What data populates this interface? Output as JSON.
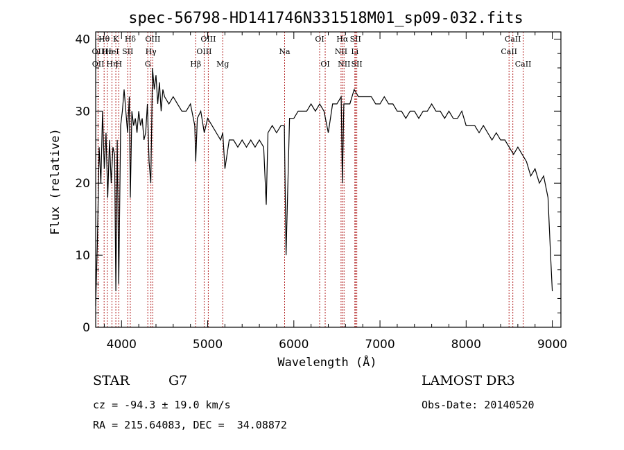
{
  "chart_data": {
    "type": "line",
    "title": "spec-56798-HD141746N331518M01_sp09-032.fits",
    "xlabel": "Wavelength (Å)",
    "ylabel": "Flux (relative)",
    "xlim": [
      3700,
      9100
    ],
    "ylim": [
      0,
      41
    ],
    "xticks": [
      4000,
      5000,
      6000,
      7000,
      8000,
      9000
    ],
    "yticks": [
      0,
      10,
      20,
      30,
      40
    ],
    "grid": false,
    "series": [
      {
        "x": [
          3700,
          3720,
          3740,
          3760,
          3780,
          3800,
          3820,
          3840,
          3860,
          3880,
          3900,
          3920,
          3934,
          3950,
          3968,
          3990,
          4010,
          4030,
          4050,
          4070,
          4090,
          4102,
          4120,
          4140,
          4160,
          4180,
          4200,
          4220,
          4240,
          4260,
          4280,
          4300,
          4320,
          4340,
          4360,
          4380,
          4400,
          4420,
          4440,
          4460,
          4480,
          4500,
          4550,
          4600,
          4650,
          4700,
          4750,
          4800,
          4850,
          4861,
          4880,
          4920,
          4960,
          5000,
          5050,
          5100,
          5150,
          5175,
          5200,
          5250,
          5300,
          5350,
          5400,
          5450,
          5500,
          5550,
          5600,
          5650,
          5680,
          5700,
          5750,
          5800,
          5850,
          5890,
          5910,
          5950,
          6000,
          6050,
          6100,
          6150,
          6200,
          6250,
          6300,
          6350,
          6400,
          6450,
          6500,
          6550,
          6563,
          6580,
          6600,
          6650,
          6700,
          6750,
          6800,
          6850,
          6900,
          6950,
          7000,
          7050,
          7100,
          7150,
          7200,
          7250,
          7300,
          7350,
          7400,
          7450,
          7500,
          7550,
          7600,
          7650,
          7700,
          7750,
          7800,
          7850,
          7900,
          7950,
          8000,
          8050,
          8100,
          8150,
          8200,
          8250,
          8300,
          8350,
          8400,
          8450,
          8500,
          8550,
          8600,
          8650,
          8700,
          8750,
          8800,
          8850,
          8900,
          8950,
          8980,
          9000
        ],
        "y": [
          3,
          12,
          25,
          20,
          30,
          22,
          27,
          18,
          26,
          20,
          25,
          24,
          5,
          26,
          6,
          28,
          30,
          33,
          30,
          27,
          32,
          18,
          30,
          28,
          29,
          27,
          30,
          28,
          29,
          26,
          27,
          31,
          23,
          20,
          36,
          33,
          35,
          31,
          34,
          30,
          33,
          32,
          31,
          32,
          31,
          30,
          30,
          31,
          28,
          23,
          29,
          30,
          27,
          29,
          28,
          27,
          26,
          27,
          22,
          26,
          26,
          25,
          26,
          25,
          26,
          25,
          26,
          25,
          17,
          27,
          28,
          27,
          28,
          28,
          10,
          29,
          29,
          30,
          30,
          30,
          31,
          30,
          31,
          30,
          27,
          31,
          31,
          32,
          20,
          31,
          31,
          31,
          33,
          32,
          32,
          32,
          32,
          31,
          31,
          32,
          31,
          31,
          30,
          30,
          29,
          30,
          30,
          29,
          30,
          30,
          31,
          30,
          30,
          29,
          30,
          29,
          29,
          30,
          28,
          28,
          28,
          27,
          28,
          27,
          26,
          27,
          26,
          26,
          25,
          24,
          25,
          24,
          23,
          21,
          22,
          20,
          21,
          18,
          10,
          5
        ]
      }
    ],
    "lines": [
      {
        "label": "Hθ",
        "wl": 3798,
        "row": 0
      },
      {
        "label": "OII",
        "wl": 3727,
        "row": 1
      },
      {
        "label": "OII",
        "wl": 3729,
        "row": 2
      },
      {
        "label": "Hε",
        "wl": 3835,
        "row": 1
      },
      {
        "label": "Hη",
        "wl": 3889,
        "row": 2
      },
      {
        "label": "HeI",
        "wl": 3889,
        "row": 1
      },
      {
        "label": "K",
        "wl": 3934,
        "row": 0
      },
      {
        "label": "H",
        "wl": 3968,
        "row": 2
      },
      {
        "label": "SII",
        "wl": 4072,
        "row": 1
      },
      {
        "label": "Hδ",
        "wl": 4102,
        "row": 0
      },
      {
        "label": "G",
        "wl": 4305,
        "row": 2
      },
      {
        "label": "Hγ",
        "wl": 4341,
        "row": 1
      },
      {
        "label": "OIII",
        "wl": 4363,
        "row": 0
      },
      {
        "label": "Hβ",
        "wl": 4861,
        "row": 2
      },
      {
        "label": "OIII",
        "wl": 4959,
        "row": 1
      },
      {
        "label": "OIII",
        "wl": 5007,
        "row": 0
      },
      {
        "label": "Mg",
        "wl": 5175,
        "row": 2
      },
      {
        "label": "Na",
        "wl": 5893,
        "row": 1
      },
      {
        "label": "OI",
        "wl": 6300,
        "row": 0
      },
      {
        "label": "OI",
        "wl": 6364,
        "row": 2
      },
      {
        "label": "NII",
        "wl": 6548,
        "row": 1
      },
      {
        "label": "Hα",
        "wl": 6563,
        "row": 0
      },
      {
        "label": "NII",
        "wl": 6583,
        "row": 2
      },
      {
        "label": "Li",
        "wl": 6708,
        "row": 1
      },
      {
        "label": "SII",
        "wl": 6716,
        "row": 0
      },
      {
        "label": "SII",
        "wl": 6731,
        "row": 2
      },
      {
        "label": "CaII",
        "wl": 8498,
        "row": 1
      },
      {
        "label": "CaII",
        "wl": 8542,
        "row": 0
      },
      {
        "label": "CaII",
        "wl": 8662,
        "row": 2
      }
    ]
  },
  "info": {
    "star_label": "STAR",
    "subclass": "G7",
    "survey": "LAMOST DR3",
    "cz": "cz = -94.3 ± 19.0 km/s",
    "obs_date": "Obs-Date: 20140520",
    "radec": "RA = 215.64083, DEC =  34.08872"
  },
  "colors": {
    "line_markers": "#b22222",
    "spectrum": "#000000"
  }
}
